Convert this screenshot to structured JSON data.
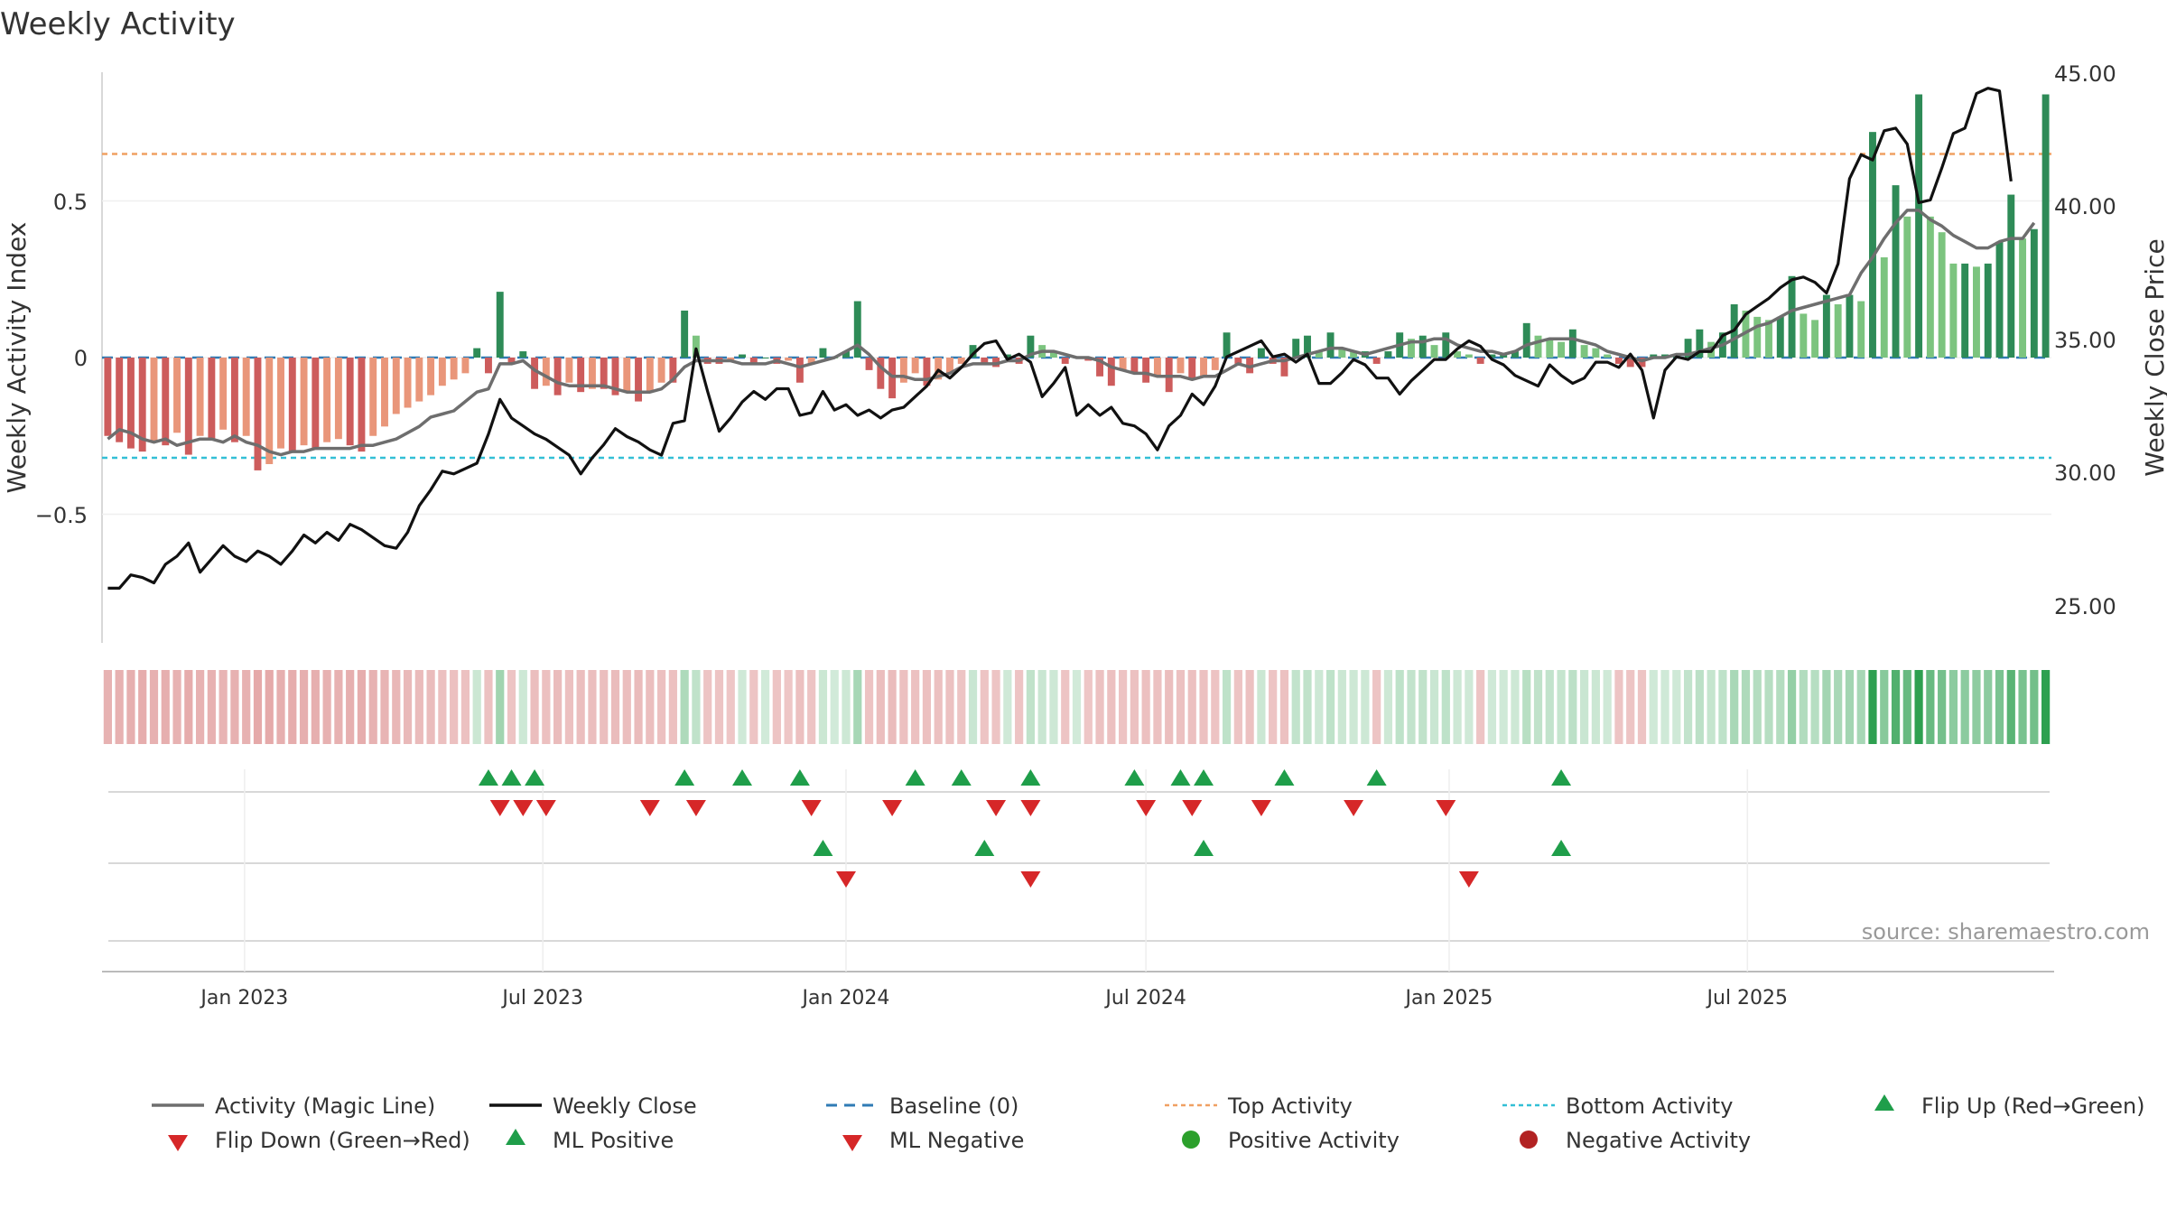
{
  "title": "Weekly Activity",
  "source": "source: sharemaestro.com",
  "colors": {
    "close": "#111111",
    "magic": "#6e6e6e",
    "baseline": "#2f7bb5",
    "top": "#f0a062",
    "bottom": "#33bfd6",
    "pos_dark": "#2e8b57",
    "pos_light": "#7cc47f",
    "neg_dark": "#cd5c5c",
    "neg_light": "#e9967a",
    "flip_up": "#1f9e4a",
    "flip_down": "#d62728",
    "pos_dot": "#2ca02c",
    "neg_dot": "#b22222"
  },
  "chart_data": {
    "type": "bar",
    "start_date": "2022-10-10",
    "period_days": 7,
    "left_axis": {
      "label": "Weekly Activity Index",
      "ticks": [
        "0.5",
        "0",
        "−0.5"
      ],
      "tick_values": [
        0.5,
        0,
        -0.5
      ],
      "range": [
        -0.9,
        0.9
      ]
    },
    "right_axis": {
      "label": "Weekly Close Price",
      "ticks": [
        "45.00",
        "40.00",
        "35.00",
        "30.00",
        "25.00"
      ],
      "tick_values": [
        45,
        40,
        35,
        30,
        25
      ],
      "range": [
        23.9,
        45.3
      ]
    },
    "x_axis": {
      "ticks": [
        "Jan 2023",
        "Jul 2023",
        "Jan 2024",
        "Jul 2024",
        "Jan 2025",
        "Jul 2025"
      ],
      "tick_dates": [
        "2023-01-01",
        "2023-07-01",
        "2024-01-01",
        "2024-07-01",
        "2025-01-01",
        "2025-07-01"
      ]
    },
    "top_activity": 0.65,
    "bottom_activity": -0.32,
    "activity": [
      -0.25,
      -0.27,
      -0.29,
      -0.3,
      -0.27,
      -0.28,
      -0.24,
      -0.31,
      -0.25,
      -0.26,
      -0.23,
      -0.27,
      -0.25,
      -0.36,
      -0.34,
      -0.29,
      -0.3,
      -0.28,
      -0.29,
      -0.27,
      -0.26,
      -0.28,
      -0.3,
      -0.25,
      -0.22,
      -0.18,
      -0.16,
      -0.14,
      -0.12,
      -0.09,
      -0.07,
      -0.05,
      0.03,
      -0.05,
      0.21,
      -0.02,
      0.02,
      -0.1,
      -0.09,
      -0.12,
      -0.08,
      -0.11,
      -0.1,
      -0.1,
      -0.12,
      -0.11,
      -0.14,
      -0.11,
      -0.08,
      -0.08,
      0.15,
      0.07,
      -0.02,
      -0.02,
      -0.01,
      0.01,
      -0.02,
      0.0,
      -0.02,
      -0.01,
      -0.08,
      -0.02,
      0.03,
      0.0,
      0.02,
      0.18,
      -0.04,
      -0.1,
      -0.13,
      -0.08,
      -0.05,
      -0.09,
      -0.07,
      -0.05,
      -0.02,
      0.04,
      -0.02,
      -0.03,
      0.01,
      -0.02,
      0.07,
      0.04,
      0.02,
      -0.02,
      0.0,
      -0.01,
      -0.06,
      -0.09,
      -0.04,
      -0.05,
      -0.08,
      -0.06,
      -0.11,
      -0.05,
      -0.07,
      -0.06,
      -0.04,
      0.08,
      -0.02,
      -0.05,
      0.03,
      -0.02,
      -0.06,
      0.06,
      0.07,
      0.02,
      0.08,
      0.03,
      0.02,
      0.02,
      -0.02,
      0.02,
      0.08,
      0.06,
      0.07,
      0.04,
      0.08,
      0.02,
      0.01,
      -0.02,
      0.01,
      0.01,
      0.02,
      0.11,
      0.07,
      0.06,
      0.05,
      0.09,
      0.04,
      0.03,
      0.01,
      -0.02,
      -0.03,
      -0.03,
      0.01,
      0.01,
      0.01,
      0.06,
      0.09,
      0.05,
      0.08,
      0.17,
      0.15,
      0.13,
      0.12,
      0.13,
      0.26,
      0.14,
      0.12,
      0.2,
      0.17,
      0.2,
      0.18,
      0.72,
      0.32,
      0.55,
      0.45,
      0.84,
      0.45,
      0.4,
      0.3,
      0.3,
      0.29,
      0.3,
      0.37,
      0.52,
      0.38,
      0.41,
      0.84
    ],
    "magic_line": [
      -0.26,
      -0.23,
      -0.24,
      -0.26,
      -0.27,
      -0.26,
      -0.28,
      -0.27,
      -0.26,
      -0.26,
      -0.27,
      -0.25,
      -0.27,
      -0.28,
      -0.3,
      -0.31,
      -0.3,
      -0.3,
      -0.29,
      -0.29,
      -0.29,
      -0.29,
      -0.28,
      -0.28,
      -0.27,
      -0.26,
      -0.24,
      -0.22,
      -0.19,
      -0.18,
      -0.17,
      -0.14,
      -0.11,
      -0.1,
      -0.02,
      -0.02,
      -0.01,
      -0.04,
      -0.06,
      -0.08,
      -0.09,
      -0.09,
      -0.09,
      -0.09,
      -0.1,
      -0.11,
      -0.11,
      -0.11,
      -0.1,
      -0.07,
      -0.03,
      -0.01,
      -0.01,
      -0.01,
      -0.01,
      -0.02,
      -0.02,
      -0.02,
      -0.01,
      -0.02,
      -0.03,
      -0.02,
      -0.01,
      0.0,
      0.02,
      0.04,
      0.01,
      -0.03,
      -0.06,
      -0.06,
      -0.07,
      -0.07,
      -0.06,
      -0.05,
      -0.03,
      -0.02,
      -0.02,
      -0.02,
      -0.01,
      -0.01,
      0.01,
      0.02,
      0.02,
      0.01,
      0.0,
      0.0,
      -0.01,
      -0.03,
      -0.04,
      -0.05,
      -0.05,
      -0.06,
      -0.06,
      -0.06,
      -0.07,
      -0.06,
      -0.06,
      -0.04,
      -0.02,
      -0.03,
      -0.02,
      -0.01,
      -0.01,
      0.0,
      0.01,
      0.02,
      0.03,
      0.03,
      0.02,
      0.01,
      0.02,
      0.03,
      0.04,
      0.05,
      0.05,
      0.06,
      0.06,
      0.04,
      0.03,
      0.02,
      0.02,
      0.01,
      0.02,
      0.04,
      0.05,
      0.06,
      0.06,
      0.06,
      0.05,
      0.04,
      0.02,
      0.01,
      0.0,
      -0.01,
      0.0,
      0.0,
      0.01,
      0.01,
      0.02,
      0.03,
      0.04,
      0.06,
      0.08,
      0.1,
      0.11,
      0.13,
      0.15,
      0.16,
      0.17,
      0.18,
      0.19,
      0.2,
      0.27,
      0.32,
      0.38,
      0.43,
      0.47,
      0.47,
      0.44,
      0.42,
      0.39,
      0.37,
      0.35,
      0.35,
      0.37,
      0.38,
      0.38,
      0.43
    ],
    "close": [
      25.7,
      25.7,
      26.2,
      26.1,
      25.9,
      26.6,
      26.9,
      27.4,
      26.3,
      26.8,
      27.3,
      26.9,
      26.7,
      27.1,
      26.9,
      26.6,
      27.1,
      27.7,
      27.4,
      27.8,
      27.5,
      28.1,
      27.9,
      27.6,
      27.3,
      27.2,
      27.8,
      28.8,
      29.4,
      30.1,
      30.0,
      30.2,
      30.4,
      31.5,
      32.8,
      32.1,
      31.8,
      31.5,
      31.3,
      31.0,
      30.7,
      30.0,
      30.6,
      31.1,
      31.7,
      31.4,
      31.2,
      30.9,
      30.7,
      31.9,
      32.0,
      34.7,
      33.1,
      31.6,
      32.1,
      32.7,
      33.1,
      32.8,
      33.2,
      33.2,
      32.2,
      32.3,
      33.1,
      32.4,
      32.6,
      32.2,
      32.4,
      32.1,
      32.4,
      32.5,
      32.9,
      33.3,
      33.9,
      33.6,
      34.0,
      34.5,
      34.9,
      35.0,
      34.3,
      34.5,
      34.2,
      32.9,
      33.4,
      34.0,
      32.2,
      32.6,
      32.2,
      32.5,
      31.9,
      31.8,
      31.5,
      30.9,
      31.8,
      32.2,
      33.0,
      32.6,
      33.3,
      34.4,
      34.6,
      34.8,
      35.0,
      34.4,
      34.5,
      34.2,
      34.5,
      33.4,
      33.4,
      33.8,
      34.3,
      34.1,
      33.6,
      33.6,
      33.0,
      33.5,
      33.9,
      34.3,
      34.3,
      34.7,
      35.0,
      34.8,
      34.3,
      34.1,
      33.7,
      33.5,
      33.3,
      34.1,
      33.7,
      33.4,
      33.6,
      34.2,
      34.2,
      34.0,
      34.5,
      33.9,
      32.1,
      33.9,
      34.4,
      34.3,
      34.6,
      34.6,
      35.2,
      35.4,
      36.0,
      36.3,
      36.6,
      37.0,
      37.3,
      37.4,
      37.2,
      36.8,
      37.9,
      41.1,
      42.0,
      41.8,
      42.9,
      43.0,
      42.4,
      40.2,
      40.3,
      41.5,
      42.8,
      43.0,
      44.3,
      44.5,
      44.4,
      41.0
    ],
    "flip_up_dates": [
      "2023-05-29",
      "2023-06-12",
      "2023-06-26",
      "2023-09-25",
      "2023-10-30",
      "2023-12-04",
      "2024-02-12",
      "2024-03-11",
      "2024-04-22",
      "2024-06-24",
      "2024-07-22",
      "2024-08-05",
      "2024-09-23",
      "2024-11-18",
      "2025-03-10"
    ],
    "flip_down_dates": [
      "2023-06-05",
      "2023-06-19",
      "2023-07-03",
      "2023-09-04",
      "2023-10-02",
      "2023-12-11",
      "2024-01-29",
      "2024-04-01",
      "2024-04-22",
      "2024-07-01",
      "2024-07-29",
      "2024-09-09",
      "2024-11-04",
      "2024-12-30"
    ],
    "ml_positive_dates": [
      "2023-12-18",
      "2024-03-25",
      "2024-08-05",
      "2025-03-10"
    ],
    "ml_negative_dates": [
      "2024-01-01",
      "2024-04-22",
      "2025-01-13"
    ],
    "legend": [
      [
        "Activity (Magic Line)",
        "Weekly Close",
        "Baseline (0)",
        "Top Activity",
        "Bottom Activity",
        "Flip Up (Red→Green)"
      ],
      [
        "Flip Down (Green→Red)",
        "ML Positive",
        "ML Negative",
        "Positive Activity",
        "Negative Activity"
      ]
    ]
  }
}
